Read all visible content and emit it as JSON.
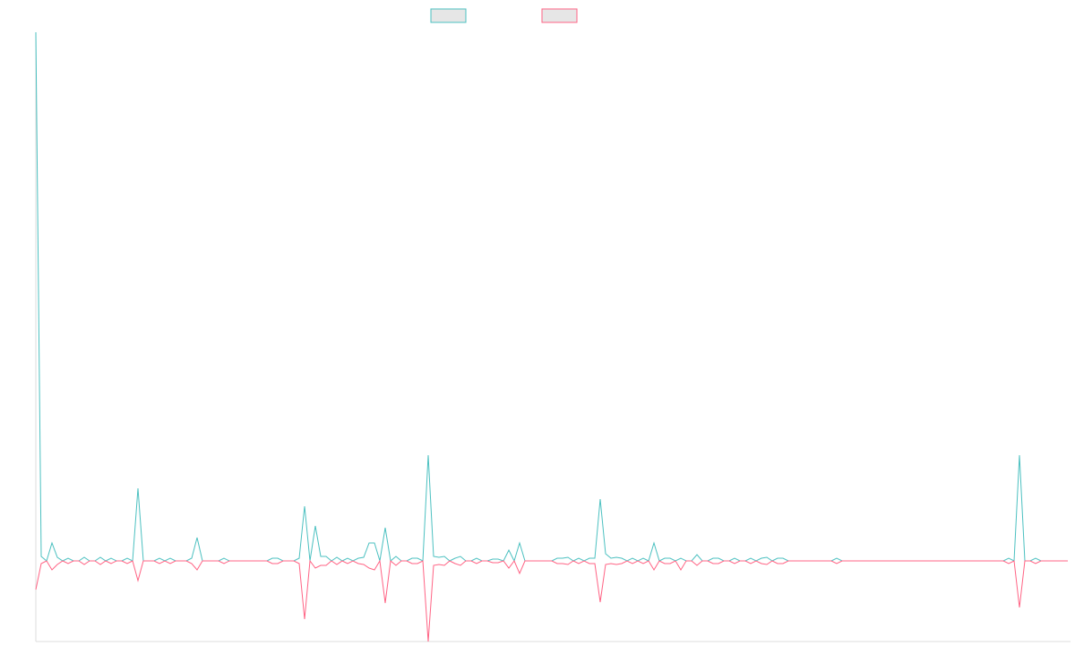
{
  "chart_data": {
    "type": "line",
    "x": [
      0,
      1,
      2,
      3,
      4,
      5,
      6,
      7,
      8,
      9,
      10,
      11,
      12,
      13,
      14,
      15,
      16,
      17,
      18,
      19,
      20,
      21,
      22,
      23,
      24,
      25,
      26,
      27,
      28,
      29,
      30,
      31,
      32,
      33,
      34,
      35,
      36,
      37,
      38,
      39,
      40,
      41,
      42,
      43,
      44,
      45,
      46,
      47,
      48,
      49,
      50,
      51,
      52,
      53,
      54,
      55,
      56,
      57,
      58,
      59,
      60,
      61,
      62,
      63,
      64,
      65,
      66,
      67,
      68,
      69,
      70,
      71,
      72,
      73,
      74,
      75,
      76,
      77,
      78,
      79,
      80,
      81,
      82,
      83,
      84,
      85,
      86,
      87,
      88,
      89,
      90,
      91,
      92,
      93,
      94,
      95,
      96,
      97,
      98,
      99,
      100,
      101,
      102,
      103,
      104,
      105,
      106,
      107,
      108,
      109,
      110,
      111,
      112,
      113,
      114,
      115,
      116,
      117,
      118,
      119,
      120,
      121,
      122,
      123,
      124,
      125,
      126,
      127,
      128,
      129,
      130,
      131,
      132,
      133,
      134,
      135,
      136,
      137,
      138,
      139,
      140,
      141,
      142,
      143,
      144,
      145,
      146,
      147,
      148,
      149,
      150,
      151,
      152,
      153,
      154,
      155,
      156,
      157,
      158,
      159,
      160,
      161,
      162,
      163,
      164,
      165,
      166,
      167,
      168,
      169,
      170,
      171,
      172,
      173,
      174,
      175,
      176,
      177,
      178,
      179,
      180,
      181,
      182,
      183,
      184,
      185,
      186,
      187,
      188,
      189,
      190,
      191,
      192
    ],
    "series": [
      {
        "color": "#4bc0c0",
        "values": [
          590,
          5,
          0,
          20,
          4,
          0,
          3,
          0,
          0,
          4,
          0,
          0,
          4,
          0,
          3,
          0,
          0,
          3,
          0,
          81,
          0,
          0,
          0,
          3,
          0,
          3,
          0,
          0,
          0,
          3,
          26,
          0,
          0,
          0,
          0,
          3,
          0,
          0,
          0,
          0,
          0,
          0,
          0,
          0,
          3,
          3,
          0,
          0,
          0,
          3,
          61,
          0,
          39,
          5,
          5,
          0,
          4,
          0,
          3,
          0,
          3,
          4,
          20,
          20,
          0,
          37,
          0,
          5,
          0,
          0,
          3,
          3,
          0,
          118,
          5,
          4,
          5,
          0,
          3,
          5,
          0,
          0,
          3,
          0,
          0,
          2,
          2,
          0,
          12,
          0,
          20,
          0,
          0,
          0,
          0,
          0,
          0,
          3,
          3,
          4,
          0,
          3,
          0,
          3,
          3,
          69,
          8,
          3,
          4,
          3,
          0,
          3,
          0,
          3,
          0,
          20,
          0,
          3,
          3,
          0,
          3,
          0,
          0,
          7,
          0,
          0,
          3,
          3,
          0,
          0,
          3,
          0,
          0,
          3,
          0,
          3,
          4,
          0,
          3,
          3,
          0,
          0,
          0,
          0,
          0,
          0,
          0,
          0,
          0,
          3,
          0,
          0,
          0,
          0,
          0,
          0,
          0,
          0,
          0,
          0,
          0,
          0,
          0,
          0,
          0,
          0,
          0,
          0,
          0,
          0,
          0,
          0,
          0,
          0,
          0,
          0,
          0,
          0,
          0,
          0,
          0,
          3,
          0,
          118,
          0,
          0,
          3,
          0,
          0,
          0,
          0,
          0,
          0
        ]
      },
      {
        "color": "#ff6384",
        "values": [
          -32,
          -3,
          0,
          -10,
          -4,
          0,
          -3,
          0,
          0,
          -4,
          0,
          0,
          -4,
          0,
          -3,
          0,
          0,
          -3,
          0,
          -22,
          0,
          0,
          0,
          -3,
          0,
          -3,
          0,
          0,
          0,
          -3,
          -10,
          0,
          0,
          0,
          0,
          -3,
          0,
          0,
          0,
          0,
          0,
          0,
          0,
          0,
          -3,
          -3,
          0,
          0,
          0,
          -3,
          -65,
          0,
          -8,
          -5,
          -5,
          0,
          -4,
          0,
          -3,
          0,
          -3,
          -4,
          -8,
          -10,
          0,
          -47,
          0,
          -5,
          0,
          0,
          -3,
          -3,
          0,
          -90,
          -5,
          -4,
          -5,
          0,
          -3,
          -5,
          0,
          0,
          -3,
          0,
          0,
          -2,
          -2,
          0,
          -8,
          0,
          -14,
          0,
          0,
          0,
          0,
          0,
          0,
          -3,
          -3,
          -4,
          0,
          -3,
          0,
          -3,
          -3,
          -46,
          -4,
          -3,
          -4,
          -3,
          0,
          -3,
          0,
          -3,
          0,
          -10,
          0,
          -3,
          -3,
          0,
          -10,
          0,
          0,
          -5,
          0,
          0,
          -3,
          -3,
          0,
          0,
          -3,
          0,
          0,
          -3,
          0,
          -3,
          -4,
          0,
          -3,
          -3,
          0,
          0,
          0,
          0,
          0,
          0,
          0,
          0,
          0,
          -3,
          0,
          0,
          0,
          0,
          0,
          0,
          0,
          0,
          0,
          0,
          0,
          0,
          0,
          0,
          0,
          0,
          0,
          0,
          0,
          0,
          0,
          0,
          0,
          0,
          0,
          0,
          0,
          0,
          0,
          0,
          0,
          -3,
          0,
          -52,
          0,
          0,
          -3,
          0,
          0,
          0,
          0,
          0,
          0
        ]
      }
    ],
    "xlim": [
      0,
      192.5
    ],
    "ylim": [
      -90,
      590
    ],
    "legend": "top"
  }
}
